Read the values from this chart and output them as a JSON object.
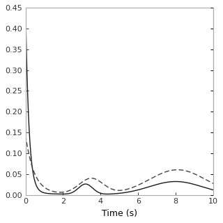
{
  "title": "",
  "xlabel": "Time (s)",
  "ylabel": "",
  "xlim": [
    0,
    10
  ],
  "ylim": [
    0,
    0.45
  ],
  "yticks": [
    0,
    0.05,
    0.1,
    0.15,
    0.2,
    0.25,
    0.3,
    0.35,
    0.4,
    0.45
  ],
  "xticks": [
    0,
    2,
    4,
    6,
    8,
    10
  ],
  "solid_color": "#1a1a1a",
  "dashed_color": "#444444",
  "linewidth": 1.0,
  "figsize": [
    3.2,
    3.2
  ],
  "dpi": 100,
  "background": "#ffffff",
  "spine_color": "#aaaaaa"
}
